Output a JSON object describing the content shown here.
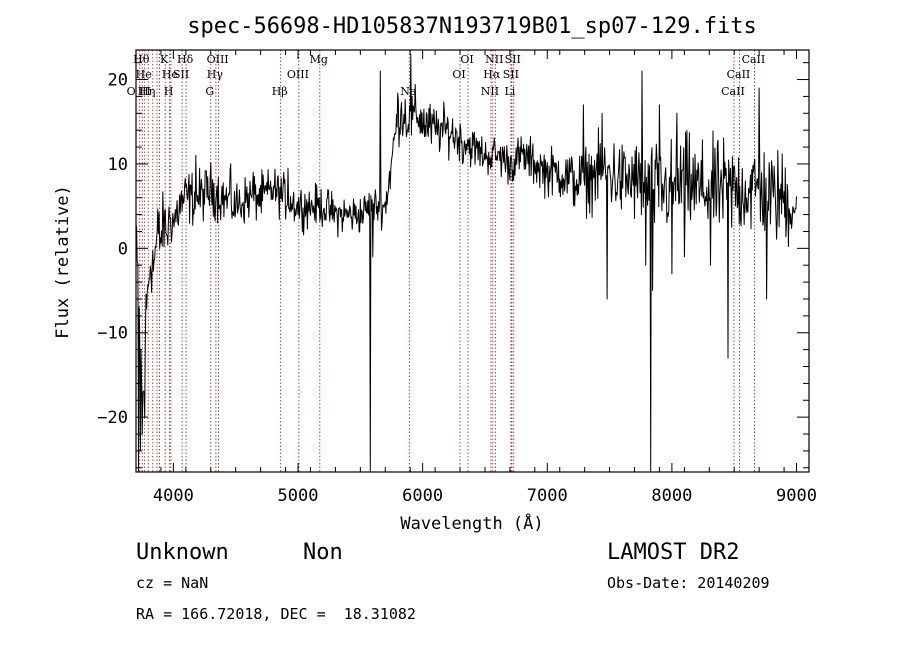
{
  "chart_data": {
    "type": "line",
    "title": "spec-56698-HD105837N193719B01_sp07-129.fits",
    "xlabel": "Wavelength (Å)",
    "ylabel": "Flux (relative)",
    "xlim": [
      3700,
      9100
    ],
    "ylim": [
      -26.5,
      23.5
    ],
    "x_ticks": [
      4000,
      5000,
      6000,
      7000,
      8000,
      9000
    ],
    "y_ticks": [
      -20,
      -10,
      0,
      10,
      20
    ],
    "line_color": "#000000",
    "marker_line_color": "#8b1a1a",
    "spectrum_anchors": [
      [
        3700,
        -1
      ],
      [
        3715,
        -4
      ],
      [
        3730,
        -9
      ],
      [
        3745,
        -16
      ],
      [
        3760,
        -18
      ],
      [
        3775,
        -10
      ],
      [
        3790,
        -6
      ],
      [
        3805,
        -3
      ],
      [
        3820,
        -1
      ],
      [
        3840,
        -2
      ],
      [
        3860,
        0
      ],
      [
        3880,
        2
      ],
      [
        3900,
        1
      ],
      [
        3920,
        3
      ],
      [
        3950,
        2
      ],
      [
        3980,
        4
      ],
      [
        4000,
        3
      ],
      [
        4050,
        5
      ],
      [
        4100,
        6
      ],
      [
        4200,
        6
      ],
      [
        4300,
        7
      ],
      [
        4400,
        6
      ],
      [
        4500,
        5
      ],
      [
        4600,
        6
      ],
      [
        4700,
        6
      ],
      [
        4800,
        7
      ],
      [
        4900,
        6
      ],
      [
        5000,
        5
      ],
      [
        5100,
        5
      ],
      [
        5200,
        5
      ],
      [
        5300,
        4
      ],
      [
        5400,
        4
      ],
      [
        5500,
        4
      ],
      [
        5580,
        5
      ],
      [
        5650,
        5
      ],
      [
        5700,
        5
      ],
      [
        5750,
        10
      ],
      [
        5800,
        16
      ],
      [
        5850,
        16
      ],
      [
        5900,
        15
      ],
      [
        5950,
        16
      ],
      [
        6000,
        15
      ],
      [
        6100,
        14
      ],
      [
        6200,
        14
      ],
      [
        6300,
        13
      ],
      [
        6400,
        12
      ],
      [
        6500,
        11
      ],
      [
        6600,
        11
      ],
      [
        6700,
        10
      ],
      [
        6800,
        11
      ],
      [
        6900,
        10
      ],
      [
        7000,
        9
      ],
      [
        7100,
        9
      ],
      [
        7200,
        8
      ],
      [
        7300,
        8
      ],
      [
        7400,
        9
      ],
      [
        7500,
        9
      ],
      [
        7600,
        8
      ],
      [
        7700,
        8
      ],
      [
        7800,
        7
      ],
      [
        7900,
        7
      ],
      [
        8000,
        7
      ],
      [
        8100,
        8
      ],
      [
        8200,
        7
      ],
      [
        8300,
        7
      ],
      [
        8400,
        7
      ],
      [
        8500,
        7
      ],
      [
        8600,
        7
      ],
      [
        8700,
        7
      ],
      [
        8800,
        6
      ],
      [
        8900,
        6
      ],
      [
        9000,
        5
      ]
    ],
    "noise_amplitude": [
      [
        3700,
        5
      ],
      [
        3800,
        4
      ],
      [
        4000,
        3
      ],
      [
        5000,
        2.2
      ],
      [
        5700,
        2
      ],
      [
        5800,
        3
      ],
      [
        6500,
        2
      ],
      [
        7000,
        2.5
      ],
      [
        7500,
        4
      ],
      [
        8000,
        5
      ],
      [
        9000,
        5
      ]
    ],
    "spikes": [
      [
        3718,
        -26.5
      ],
      [
        3735,
        -24
      ],
      [
        3752,
        -22
      ],
      [
        3770,
        -20
      ],
      [
        4180,
        11
      ],
      [
        4460,
        10
      ],
      [
        4640,
        9
      ],
      [
        4920,
        9.5
      ],
      [
        5580,
        -26.5
      ],
      [
        5600,
        -1
      ],
      [
        5660,
        21
      ],
      [
        5905,
        23
      ],
      [
        6320,
        10
      ],
      [
        6640,
        12
      ],
      [
        7290,
        17
      ],
      [
        7440,
        16
      ],
      [
        7480,
        -6
      ],
      [
        7760,
        21
      ],
      [
        7790,
        -2
      ],
      [
        7830,
        -26.5
      ],
      [
        7845,
        -5
      ],
      [
        7900,
        17
      ],
      [
        8000,
        -3
      ],
      [
        8040,
        16
      ],
      [
        8100,
        -1
      ],
      [
        8310,
        -2
      ],
      [
        8450,
        -13
      ],
      [
        8700,
        19
      ],
      [
        8760,
        -6
      ]
    ],
    "line_markers": [
      {
        "x": 3730,
        "labels": [
          {
            "text": "O III",
            "row": 3
          }
        ]
      },
      {
        "x": 3750,
        "labels": [
          {
            "text": "Hθ",
            "row": 1
          }
        ]
      },
      {
        "x": 3770,
        "labels": [
          {
            "text": "He",
            "row": 2
          }
        ]
      },
      {
        "x": 3798,
        "labels": [
          {
            "text": "Hη",
            "row": 3
          }
        ]
      },
      {
        "x": 3835,
        "labels": [
          {
            "text": "",
            "row": 0
          }
        ]
      },
      {
        "x": 3869,
        "labels": [
          {
            "text": "",
            "row": 0
          }
        ]
      },
      {
        "x": 3889,
        "labels": [
          {
            "text": "",
            "row": 0
          }
        ]
      },
      {
        "x": 3934,
        "labels": [
          {
            "text": "K",
            "row": 1
          }
        ]
      },
      {
        "x": 3970,
        "labels": [
          {
            "text": "H",
            "row": 3
          }
        ]
      },
      {
        "x": 3980,
        "labels": [
          {
            "text": "He",
            "row": 2
          }
        ]
      },
      {
        "x": 4070,
        "labels": [
          {
            "text": "SII",
            "row": 2
          }
        ]
      },
      {
        "x": 4102,
        "labels": [
          {
            "text": "Hδ",
            "row": 1
          }
        ]
      },
      {
        "x": 4300,
        "labels": [
          {
            "text": "G",
            "row": 3
          }
        ]
      },
      {
        "x": 4341,
        "labels": [
          {
            "text": "Hγ",
            "row": 2
          }
        ]
      },
      {
        "x": 4363,
        "labels": [
          {
            "text": "OIII",
            "row": 1
          }
        ]
      },
      {
        "x": 4861,
        "labels": [
          {
            "text": "Hβ",
            "row": 3
          }
        ]
      },
      {
        "x": 5007,
        "labels": [
          {
            "text": "OIII",
            "row": 2
          }
        ]
      },
      {
        "x": 5175,
        "labels": [
          {
            "text": "Mg",
            "row": 1
          }
        ]
      },
      {
        "x": 5893,
        "labels": [
          {
            "text": "Na",
            "row": 3
          }
        ]
      },
      {
        "x": 6300,
        "labels": [
          {
            "text": "OI",
            "row": 2
          }
        ]
      },
      {
        "x": 6364,
        "labels": [
          {
            "text": "OI",
            "row": 1
          }
        ]
      },
      {
        "x": 6548,
        "labels": [
          {
            "text": "NII",
            "row": 3
          }
        ]
      },
      {
        "x": 6563,
        "labels": [
          {
            "text": "Hα",
            "row": 2
          }
        ]
      },
      {
        "x": 6583,
        "labels": [
          {
            "text": "NII",
            "row": 1
          }
        ]
      },
      {
        "x": 6708,
        "labels": [
          {
            "text": "Li",
            "row": 3
          }
        ]
      },
      {
        "x": 6716,
        "labels": [
          {
            "text": "SII",
            "row": 2
          }
        ]
      },
      {
        "x": 6731,
        "labels": [
          {
            "text": "SII",
            "row": 1
          }
        ]
      },
      {
        "x": 8498,
        "labels": [
          {
            "text": "CaII",
            "row": 3
          }
        ]
      },
      {
        "x": 8542,
        "labels": [
          {
            "text": "CaII",
            "row": 2
          }
        ]
      },
      {
        "x": 8662,
        "labels": [
          {
            "text": "CaII",
            "row": 1
          }
        ]
      }
    ]
  },
  "info": {
    "classification": "Unknown",
    "subclass": "Non",
    "redshift": "cz = NaN",
    "coordinates": "RA = 166.72018, DEC =  18.31082",
    "survey": "LAMOST DR2",
    "obs_date": "Obs-Date: 20140209"
  }
}
